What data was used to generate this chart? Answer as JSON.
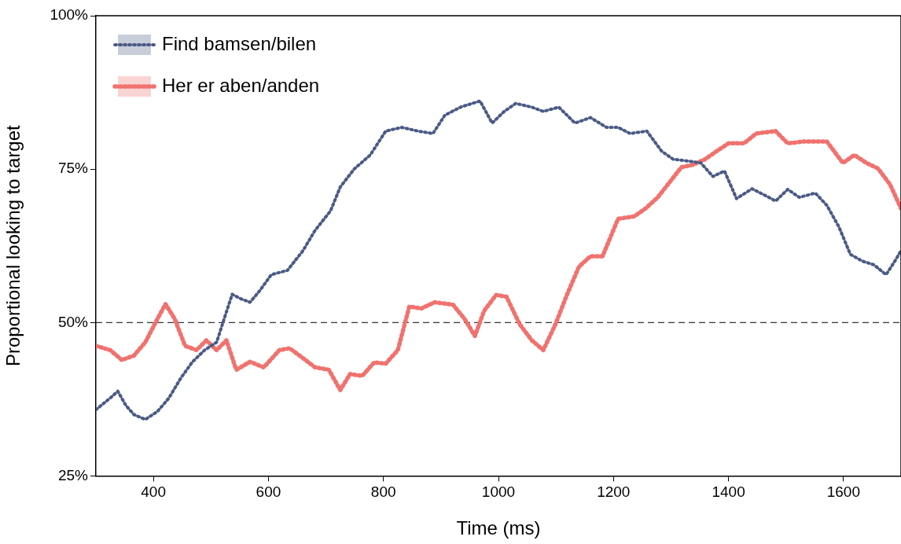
{
  "chart_data": {
    "type": "line",
    "xlabel": "Time (ms)",
    "ylabel": "Proportional looking to target",
    "xlim": [
      300,
      1700
    ],
    "xticks": [
      400,
      600,
      800,
      1000,
      1200,
      1400,
      1600
    ],
    "ylim": [
      25,
      100
    ],
    "yticks": [
      {
        "value": 25,
        "label": "25%"
      },
      {
        "value": 50,
        "label": "50%"
      },
      {
        "value": 75,
        "label": "75%"
      },
      {
        "value": 100,
        "label": "100%"
      }
    ],
    "grid": false,
    "legend": "top left",
    "line_style": "dotted",
    "marker": "none",
    "ref_lines": [
      {
        "axis": "y",
        "value": 50,
        "line_style": "dashed",
        "color": "#000000"
      }
    ],
    "series": [
      {
        "name": "Find bamsen/bilen",
        "color": "#4a5a85",
        "x": [
          300,
          325,
          338,
          352,
          366,
          386,
          407,
          427,
          448,
          468,
          489,
          510,
          523,
          537,
          551,
          568,
          585,
          605,
          633,
          660,
          681,
          708,
          725,
          749,
          777,
          804,
          832,
          860,
          886,
          907,
          934,
          968,
          989,
          1010,
          1030,
          1058,
          1078,
          1105,
          1133,
          1160,
          1188,
          1208,
          1229,
          1258,
          1284,
          1304,
          1332,
          1352,
          1373,
          1393,
          1414,
          1441,
          1462,
          1482,
          1503,
          1523,
          1551,
          1571,
          1592,
          1612,
          1633,
          1653,
          1674,
          1688,
          1700
        ],
        "values": [
          35.8,
          37.7,
          38.8,
          36.5,
          35,
          34.2,
          35.5,
          37.7,
          41,
          43.6,
          45.5,
          46.8,
          50.6,
          54.6,
          53.9,
          53.3,
          55.2,
          57.8,
          58.5,
          61.7,
          65,
          68.2,
          72.1,
          75,
          77.3,
          81.2,
          81.8,
          81.2,
          80.8,
          83.8,
          85.1,
          86.1,
          82.5,
          84.4,
          85.7,
          85.1,
          84.4,
          85.1,
          82.5,
          83.4,
          81.8,
          81.8,
          80.8,
          81.2,
          77.9,
          76.6,
          76.3,
          76,
          73.8,
          74.7,
          70.2,
          71.8,
          70.8,
          69.8,
          71.7,
          70.4,
          71.1,
          69.1,
          65.6,
          61.1,
          60,
          59.4,
          57.8,
          59.8,
          61.7
        ]
      },
      {
        "name": "Her er aben/anden",
        "color": "#f0726e",
        "x": [
          300,
          325,
          345,
          366,
          386,
          407,
          421,
          437,
          455,
          475,
          492,
          510,
          527,
          544,
          568,
          592,
          619,
          637,
          660,
          681,
          705,
          725,
          742,
          763,
          784,
          804,
          825,
          845,
          866,
          889,
          921,
          941,
          959,
          975,
          996,
          1014,
          1037,
          1058,
          1078,
          1099,
          1119,
          1140,
          1160,
          1181,
          1208,
          1236,
          1256,
          1277,
          1297,
          1318,
          1338,
          1359,
          1379,
          1400,
          1427,
          1448,
          1482,
          1503,
          1530,
          1571,
          1599,
          1619,
          1640,
          1660,
          1681,
          1700
        ],
        "values": [
          46.2,
          45.5,
          43.9,
          44.6,
          46.8,
          50.6,
          53,
          50.6,
          46.2,
          45.5,
          47.1,
          45.5,
          47.1,
          42.3,
          43.6,
          42.7,
          45.5,
          45.8,
          44.2,
          42.7,
          42.3,
          39,
          41.6,
          41.3,
          43.5,
          43.3,
          45.5,
          52.6,
          52.3,
          53.3,
          52.9,
          50.6,
          47.8,
          51.9,
          54.5,
          54.2,
          49.7,
          47.1,
          45.5,
          49.7,
          54.5,
          59.1,
          60.8,
          60.8,
          66.9,
          67.3,
          68.6,
          70.4,
          72.8,
          75.3,
          75.7,
          76.6,
          77.9,
          79.2,
          79.2,
          80.8,
          81.2,
          79.2,
          79.5,
          79.5,
          76,
          77.3,
          76,
          75.1,
          72.5,
          68.6
        ]
      }
    ]
  }
}
